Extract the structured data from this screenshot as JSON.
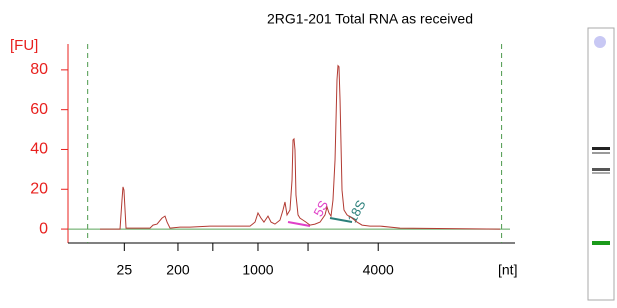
{
  "chart_data": {
    "type": "line",
    "title": "2RG1-201 Total RNA as received",
    "y_label": "[FU]",
    "x_label": "[nt]",
    "x": [
      22.58,
      24.82,
      25.04,
      25.15,
      25.26,
      25.49,
      28.17,
      28.51,
      28.96,
      29.51,
      29.85,
      30.08,
      30.41,
      31.53,
      32.65,
      34.88,
      37.12,
      39.36,
      39.92,
      40.25,
      40.59,
      40.92,
      41.37,
      41.71,
      42.15,
      42.71,
      43.05,
      43.27,
      43.5,
      43.83,
      44.06,
      44.17,
      44.28,
      44.39,
      44.5,
      44.73,
      44.95,
      45.29,
      45.62,
      46.07,
      46.63,
      47.19,
      47.75,
      47.97,
      48.19,
      48.42,
      48.64,
      48.87,
      49.09,
      49.2,
      49.31,
      49.43,
      49.65,
      49.87,
      50.21,
      50.77,
      51.33,
      51.89,
      52.78,
      53.9,
      56.14,
      67.32
    ],
    "values": [
      0,
      0,
      14.6,
      21.2,
      19.6,
      0.5,
      0.5,
      2.0,
      2.5,
      5.5,
      6.5,
      3.5,
      0.5,
      1.0,
      1.0,
      1.5,
      1.5,
      1.5,
      3.5,
      8.1,
      5.5,
      3.5,
      6.5,
      3.5,
      2.5,
      4.5,
      9.6,
      13.6,
      7.1,
      9.6,
      24.7,
      44.8,
      45.3,
      39.8,
      17.1,
      7.1,
      5.5,
      4.5,
      3.5,
      2.0,
      2.5,
      3.5,
      7.1,
      11.1,
      8.1,
      6.5,
      14.6,
      34.8,
      75.1,
      82.1,
      81.6,
      65.0,
      19.6,
      9.6,
      7.1,
      5.5,
      3.5,
      2.0,
      1.5,
      1.5,
      0.5,
      0
    ],
    "color": "#b23a32",
    "baseline_color": "#5aa55a",
    "axis_color": "#e8201e",
    "marker_color": "#4c9a4c",
    "markers": [
      21.2,
      67.5
    ],
    "xlim": [
      19,
      69
    ],
    "ylim": [
      -7,
      93
    ],
    "xticks": [
      {
        "value": 25.3,
        "label": "25"
      },
      {
        "value": 31.3,
        "label": "200"
      },
      {
        "value": 40.25,
        "label": "1000"
      },
      {
        "value": 53.7,
        "label": "4000"
      }
    ],
    "xminorticks": [
      35.2,
      45.85
    ],
    "yticks": [
      0,
      20,
      40,
      60,
      80
    ],
    "annotations": [
      {
        "text": "5S",
        "color": "#e040c8"
      },
      {
        "text": "18S",
        "color": "#2a7f7a"
      }
    ]
  }
}
